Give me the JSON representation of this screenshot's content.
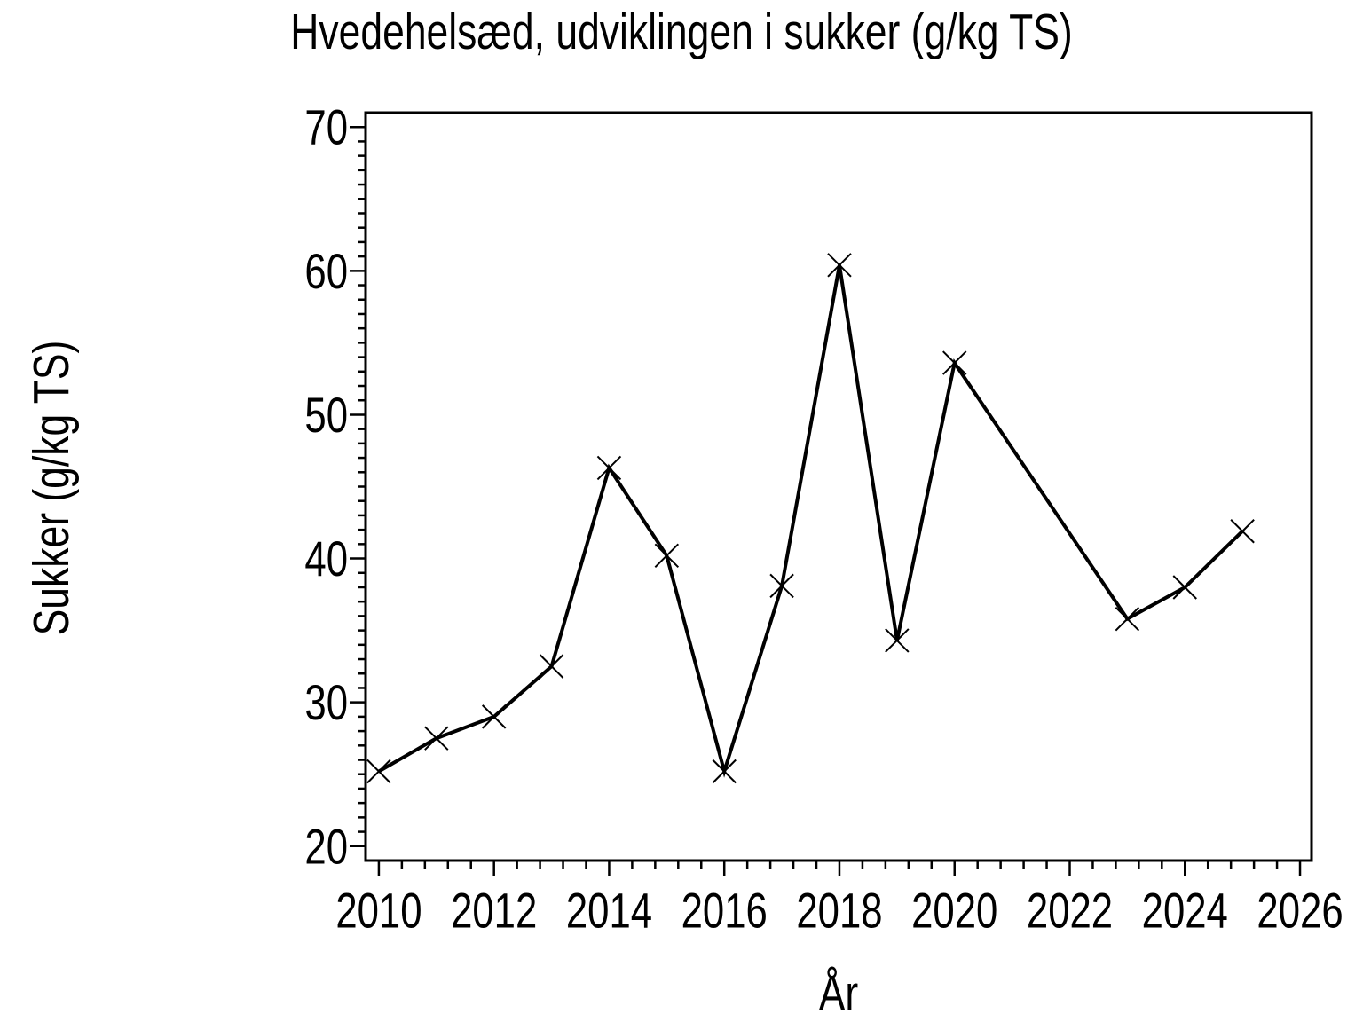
{
  "chart_data": {
    "type": "line",
    "title": "Hvedehelsæd,  udviklingen  i  sukker  (g/kg  TS)",
    "xlabel": "År",
    "ylabel": "Sukker  (g/kg  TS)",
    "series": [
      {
        "name": "sukker",
        "x": [
          2010,
          2011,
          2012,
          2013,
          2014,
          2015,
          2016,
          2017,
          2018,
          2019,
          2020,
          2023,
          2024,
          2025
        ],
        "y": [
          25.2,
          27.5,
          29.0,
          32.5,
          46.3,
          40.2,
          25.2,
          38.1,
          60.4,
          34.3,
          53.6,
          35.8,
          38.0,
          41.9
        ],
        "marker": "x",
        "color": "#000000"
      }
    ],
    "xlim": [
      2009.77,
      2026.2
    ],
    "ylim": [
      19,
      71
    ],
    "x_major_ticks": [
      2010,
      2012,
      2014,
      2016,
      2018,
      2020,
      2022,
      2024,
      2026
    ],
    "x_tick_labels": [
      "2010",
      "2012",
      "2014",
      "2016",
      "2018",
      "2020",
      "2022",
      "2024",
      "2026"
    ],
    "x_minor_step": 0.4,
    "y_major_ticks": [
      20,
      30,
      40,
      50,
      60,
      70
    ],
    "y_tick_labels": [
      "20",
      "30",
      "40",
      "50",
      "60",
      "70"
    ],
    "y_minor_step": 1,
    "grid": false,
    "legend_position": "none",
    "frame": true,
    "background_color": "#ffffff",
    "axis_color": "#000000"
  }
}
